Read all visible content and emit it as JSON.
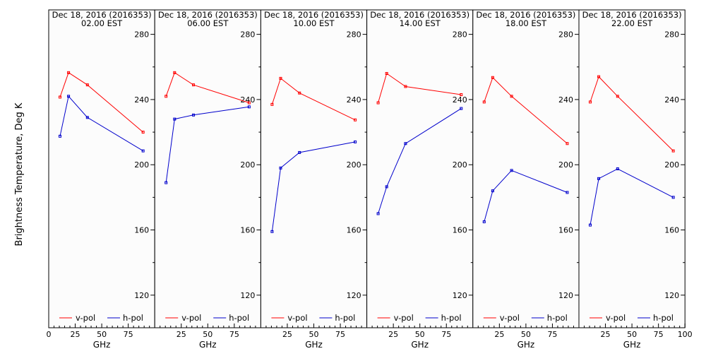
{
  "figure": {
    "ylabel": "Brightness Temperature, Deg K",
    "xlabel": "GHz",
    "legend_vpol": "v-pol",
    "legend_hpol": "h-pol",
    "colors": {
      "vpol": "#ff0000",
      "hpol": "#0000cc",
      "background": "#fcfcfc",
      "axis": "#000000"
    }
  },
  "chart_data": [
    {
      "type": "line",
      "title": "Dec 18, 2016 (2016353)",
      "subtitle": "02.00 EST",
      "xlabel": "GHz",
      "ylabel": "Brightness Temperature, Deg K",
      "xlim": [
        0,
        100
      ],
      "ylim": [
        100,
        295
      ],
      "xticks": [
        "0",
        "25",
        "50",
        "75"
      ],
      "yticks": [
        "120",
        "160",
        "200",
        "240",
        "280"
      ],
      "legend": "bottom",
      "series": [
        {
          "name": "v-pol",
          "x": [
            10.65,
            18.7,
            36.5,
            89.0
          ],
          "y": [
            241.5,
            256.5,
            249.0,
            220.0
          ]
        },
        {
          "name": "h-pol",
          "x": [
            10.65,
            18.7,
            36.5,
            89.0
          ],
          "y": [
            217.5,
            242.0,
            229.0,
            208.5
          ]
        }
      ]
    },
    {
      "type": "line",
      "title": "Dec 18, 2016 (2016353)",
      "subtitle": "06.00 EST",
      "xlabel": "GHz",
      "xlim": [
        0,
        100
      ],
      "ylim": [
        100,
        295
      ],
      "xticks": [
        "25",
        "50",
        "75"
      ],
      "yticks": [
        "120",
        "160",
        "200",
        "240",
        "280"
      ],
      "legend": "bottom",
      "series": [
        {
          "name": "v-pol",
          "x": [
            10.65,
            18.7,
            36.5,
            89.0
          ],
          "y": [
            242.0,
            256.5,
            249.0,
            238.0
          ]
        },
        {
          "name": "h-pol",
          "x": [
            10.65,
            18.7,
            36.5,
            89.0
          ],
          "y": [
            189.0,
            228.0,
            230.5,
            235.5
          ]
        }
      ]
    },
    {
      "type": "line",
      "title": "Dec 18, 2016 (2016353)",
      "subtitle": "10.00 EST",
      "xlabel": "GHz",
      "xlim": [
        0,
        100
      ],
      "ylim": [
        100,
        295
      ],
      "xticks": [
        "25",
        "50",
        "75"
      ],
      "yticks": [
        "120",
        "160",
        "200",
        "240",
        "280"
      ],
      "legend": "bottom",
      "series": [
        {
          "name": "v-pol",
          "x": [
            10.65,
            18.7,
            36.5,
            89.0
          ],
          "y": [
            237.0,
            253.0,
            244.0,
            227.5
          ]
        },
        {
          "name": "h-pol",
          "x": [
            10.65,
            18.7,
            36.5,
            89.0
          ],
          "y": [
            159.0,
            198.0,
            207.5,
            214.0
          ]
        }
      ]
    },
    {
      "type": "line",
      "title": "Dec 18, 2016 (2016353)",
      "subtitle": "14.00 EST",
      "xlabel": "GHz",
      "xlim": [
        0,
        100
      ],
      "ylim": [
        100,
        295
      ],
      "xticks": [
        "25",
        "50",
        "75"
      ],
      "yticks": [
        "120",
        "160",
        "200",
        "240",
        "280"
      ],
      "legend": "bottom",
      "series": [
        {
          "name": "v-pol",
          "x": [
            10.65,
            18.7,
            36.5,
            89.0
          ],
          "y": [
            238.0,
            256.0,
            248.0,
            243.0
          ]
        },
        {
          "name": "h-pol",
          "x": [
            10.65,
            18.7,
            36.5,
            89.0
          ],
          "y": [
            170.0,
            186.5,
            213.0,
            234.5
          ]
        }
      ]
    },
    {
      "type": "line",
      "title": "Dec 18, 2016 (2016353)",
      "subtitle": "18.00 EST",
      "xlabel": "GHz",
      "xlim": [
        0,
        100
      ],
      "ylim": [
        100,
        295
      ],
      "xticks": [
        "25",
        "50",
        "75"
      ],
      "yticks": [
        "120",
        "160",
        "200",
        "240",
        "280"
      ],
      "legend": "bottom",
      "series": [
        {
          "name": "v-pol",
          "x": [
            10.65,
            18.7,
            36.5,
            89.0
          ],
          "y": [
            238.5,
            253.5,
            242.0,
            213.0
          ]
        },
        {
          "name": "h-pol",
          "x": [
            10.65,
            18.7,
            36.5,
            89.0
          ],
          "y": [
            165.0,
            184.0,
            196.5,
            183.0
          ]
        }
      ]
    },
    {
      "type": "line",
      "title": "Dec 18, 2016 (2016353)",
      "subtitle": "22.00 EST",
      "xlabel": "GHz",
      "xlim": [
        0,
        100
      ],
      "ylim": [
        100,
        295
      ],
      "xticks": [
        "25",
        "50",
        "75",
        "100"
      ],
      "yticks": [
        "120",
        "160",
        "200",
        "240",
        "280"
      ],
      "legend": "bottom",
      "series": [
        {
          "name": "v-pol",
          "x": [
            10.65,
            18.7,
            36.5,
            89.0
          ],
          "y": [
            238.5,
            254.0,
            242.0,
            208.5
          ]
        },
        {
          "name": "h-pol",
          "x": [
            10.65,
            18.7,
            36.5,
            89.0
          ],
          "y": [
            163.0,
            191.5,
            197.5,
            180.0
          ]
        }
      ]
    }
  ]
}
